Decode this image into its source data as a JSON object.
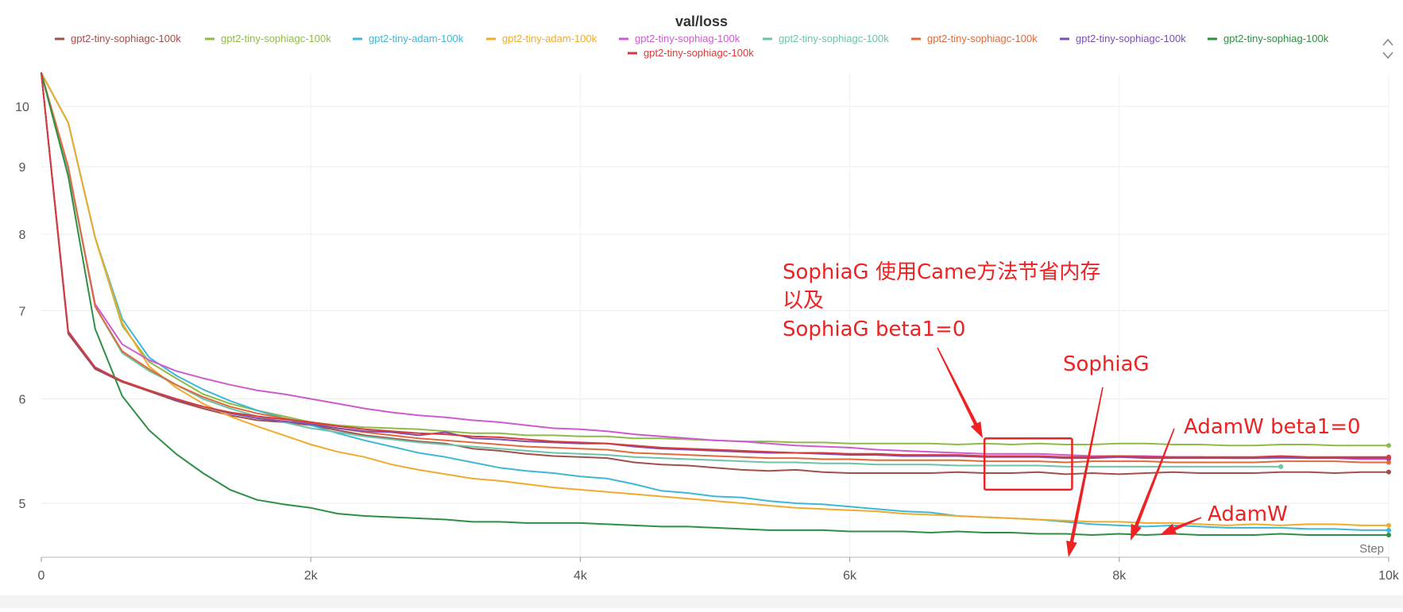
{
  "chart_data": {
    "type": "line",
    "title": "val/loss",
    "xlabel": "Step",
    "ylabel": "",
    "xlim": [
      0,
      10000
    ],
    "ylim": [
      4.55,
      10.6
    ],
    "y_scale": "log",
    "grid": true,
    "legend_position": "top",
    "x_ticks": [
      {
        "value": 0,
        "label": "0"
      },
      {
        "value": 2000,
        "label": "2k"
      },
      {
        "value": 4000,
        "label": "4k"
      },
      {
        "value": 6000,
        "label": "6k"
      },
      {
        "value": 8000,
        "label": "8k"
      },
      {
        "value": 10000,
        "label": "10k"
      }
    ],
    "y_ticks": [
      {
        "value": 5,
        "label": "5"
      },
      {
        "value": 6,
        "label": "6"
      },
      {
        "value": 7,
        "label": "7"
      },
      {
        "value": 8,
        "label": "8"
      },
      {
        "value": 9,
        "label": "9"
      },
      {
        "value": 10,
        "label": "10"
      }
    ],
    "series": [
      {
        "name": "gpt2-tiny-sophiagc-100k",
        "color": "#a0504a",
        "x": [
          0,
          200,
          400,
          600,
          800,
          1000,
          1200,
          1400,
          1600,
          1800,
          2000,
          2200,
          2400,
          2600,
          2800,
          3000,
          3200,
          3400,
          3600,
          3800,
          4000,
          4200,
          4400,
          4600,
          4800,
          5000,
          5200,
          5400,
          5600,
          5800,
          6000,
          6200,
          6400,
          6600,
          6800,
          7000,
          7200,
          7400,
          7600,
          7800,
          8000,
          8200,
          8400,
          8600,
          8800,
          9000,
          9200,
          9400,
          9600,
          9800,
          10000
        ],
        "y": [
          10.6,
          6.72,
          6.32,
          6.18,
          6.08,
          5.98,
          5.9,
          5.83,
          5.78,
          5.76,
          5.73,
          5.68,
          5.63,
          5.6,
          5.57,
          5.55,
          5.5,
          5.48,
          5.45,
          5.43,
          5.42,
          5.41,
          5.37,
          5.35,
          5.34,
          5.32,
          5.3,
          5.29,
          5.3,
          5.28,
          5.27,
          5.27,
          5.27,
          5.27,
          5.28,
          5.27,
          5.27,
          5.28,
          5.26,
          5.27,
          5.26,
          5.27,
          5.28,
          5.27,
          5.27,
          5.27,
          5.28,
          5.28,
          5.27,
          5.28,
          5.28
        ]
      },
      {
        "name": "gpt2-tiny-sophiagc-100k",
        "color": "#8fbc46",
        "x": [
          0,
          200,
          400,
          600,
          800,
          1000,
          1200,
          1400,
          1600,
          1800,
          2000,
          2200,
          2400,
          2600,
          2800,
          3000,
          3200,
          3400,
          3600,
          3800,
          4000,
          4200,
          4400,
          4600,
          4800,
          5000,
          5200,
          5400,
          5600,
          5800,
          6000,
          6200,
          6400,
          6600,
          6800,
          7000,
          7200,
          7400,
          7600,
          7800,
          8000,
          8200,
          8400,
          8600,
          8800,
          9000,
          9200,
          9400,
          9600,
          9800,
          10000
        ],
        "y": [
          10.6,
          9.72,
          7.95,
          6.82,
          6.4,
          6.22,
          6.05,
          5.95,
          5.88,
          5.82,
          5.76,
          5.73,
          5.71,
          5.7,
          5.69,
          5.67,
          5.65,
          5.65,
          5.63,
          5.63,
          5.62,
          5.62,
          5.6,
          5.6,
          5.59,
          5.58,
          5.57,
          5.57,
          5.56,
          5.56,
          5.55,
          5.55,
          5.55,
          5.55,
          5.54,
          5.55,
          5.54,
          5.55,
          5.54,
          5.54,
          5.55,
          5.55,
          5.54,
          5.54,
          5.53,
          5.53,
          5.54,
          5.54,
          5.53,
          5.53,
          5.53
        ]
      },
      {
        "name": "gpt2-tiny-adam-100k",
        "color": "#3fb7d6",
        "x": [
          0,
          200,
          400,
          600,
          800,
          1000,
          1200,
          1400,
          1600,
          1800,
          2000,
          2200,
          2400,
          2600,
          2800,
          3000,
          3200,
          3400,
          3600,
          3800,
          4000,
          4200,
          4400,
          4600,
          4800,
          5000,
          5200,
          5400,
          5600,
          5800,
          6000,
          6200,
          6400,
          6600,
          6800,
          7000,
          7200,
          7400,
          7600,
          7800,
          8000,
          8200,
          8400,
          8600,
          8800,
          9000,
          9200,
          9400,
          9600,
          9800,
          10000
        ],
        "y": [
          10.6,
          9.72,
          7.95,
          6.9,
          6.45,
          6.25,
          6.1,
          5.98,
          5.88,
          5.8,
          5.73,
          5.65,
          5.58,
          5.52,
          5.46,
          5.42,
          5.37,
          5.32,
          5.29,
          5.27,
          5.24,
          5.22,
          5.17,
          5.11,
          5.09,
          5.06,
          5.05,
          5.02,
          5.0,
          4.99,
          4.97,
          4.95,
          4.93,
          4.92,
          4.89,
          4.88,
          4.87,
          4.86,
          4.84,
          4.82,
          4.81,
          4.8,
          4.81,
          4.8,
          4.79,
          4.79,
          4.79,
          4.78,
          4.78,
          4.77,
          4.77
        ]
      },
      {
        "name": "gpt2-tiny-adam-100k",
        "color": "#efac2c",
        "x": [
          0,
          200,
          400,
          600,
          800,
          1000,
          1200,
          1400,
          1600,
          1800,
          2000,
          2200,
          2400,
          2600,
          2800,
          3000,
          3200,
          3400,
          3600,
          3800,
          4000,
          4200,
          4400,
          4600,
          4800,
          5000,
          5200,
          5400,
          5600,
          5800,
          6000,
          6200,
          6400,
          6600,
          6800,
          7000,
          7200,
          7400,
          7600,
          7800,
          8000,
          8200,
          8400,
          8600,
          8800,
          9000,
          9200,
          9400,
          9600,
          9800,
          10000
        ],
        "y": [
          10.6,
          9.72,
          7.95,
          6.85,
          6.35,
          6.12,
          5.95,
          5.82,
          5.72,
          5.63,
          5.54,
          5.47,
          5.42,
          5.35,
          5.3,
          5.26,
          5.22,
          5.2,
          5.17,
          5.14,
          5.12,
          5.1,
          5.08,
          5.06,
          5.04,
          5.02,
          5.0,
          4.98,
          4.96,
          4.95,
          4.94,
          4.93,
          4.91,
          4.9,
          4.89,
          4.88,
          4.87,
          4.86,
          4.85,
          4.84,
          4.84,
          4.83,
          4.83,
          4.82,
          4.81,
          4.82,
          4.81,
          4.82,
          4.82,
          4.81,
          4.81
        ]
      },
      {
        "name": "gpt2-tiny-sophiag-100k",
        "color": "#cc5bd0",
        "x": [
          0,
          200,
          400,
          600,
          800,
          1000,
          1200,
          1400,
          1600,
          1800,
          2000,
          2200,
          2400,
          2600,
          2800,
          3000,
          3200,
          3400,
          3600,
          3800,
          4000,
          4200,
          4400,
          4600,
          4800,
          5000,
          5200,
          5400,
          5600,
          5800,
          6000,
          6200,
          6400,
          6600,
          6800,
          7000,
          7200,
          7400,
          7600,
          7800,
          8000,
          8200,
          8400,
          8600,
          8800,
          9000,
          9200,
          9400,
          9600,
          9800,
          10000
        ],
        "y": [
          10.6,
          8.95,
          7.08,
          6.6,
          6.42,
          6.3,
          6.22,
          6.15,
          6.09,
          6.05,
          6.0,
          5.95,
          5.9,
          5.86,
          5.83,
          5.81,
          5.78,
          5.76,
          5.73,
          5.7,
          5.69,
          5.67,
          5.64,
          5.62,
          5.6,
          5.58,
          5.57,
          5.55,
          5.53,
          5.52,
          5.51,
          5.49,
          5.48,
          5.47,
          5.46,
          5.45,
          5.45,
          5.45,
          5.44,
          5.43,
          5.43,
          5.43,
          5.42,
          5.42,
          5.41,
          5.41,
          5.41,
          5.41,
          5.41,
          5.4,
          5.4
        ]
      },
      {
        "name": "gpt2-tiny-sophiagc-100k",
        "color": "#6cc4a8",
        "x": [
          0,
          200,
          400,
          600,
          800,
          1000,
          1200,
          1400,
          1600,
          1800,
          2000,
          2200,
          2400,
          2600,
          2800,
          3000,
          3200,
          3400,
          3600,
          3800,
          4000,
          4200,
          4400,
          4600,
          4800,
          5000,
          5200,
          5400,
          5600,
          5800,
          6000,
          6200,
          6400,
          6600,
          6800,
          7000,
          7200,
          7400,
          7600,
          7800,
          8000,
          8200,
          8400,
          8600,
          8800,
          9000,
          9200
        ],
        "y": [
          10.6,
          8.95,
          7.05,
          6.5,
          6.3,
          6.15,
          6.0,
          5.9,
          5.82,
          5.76,
          5.7,
          5.66,
          5.62,
          5.59,
          5.56,
          5.54,
          5.52,
          5.5,
          5.48,
          5.46,
          5.45,
          5.44,
          5.42,
          5.41,
          5.4,
          5.39,
          5.38,
          5.37,
          5.37,
          5.36,
          5.36,
          5.35,
          5.35,
          5.35,
          5.34,
          5.34,
          5.34,
          5.34,
          5.33,
          5.33,
          5.33,
          5.33,
          5.33,
          5.33,
          5.33,
          5.33,
          5.33
        ]
      },
      {
        "name": "gpt2-tiny-sophiagc-100k",
        "color": "#e06a3c",
        "x": [
          0,
          200,
          400,
          600,
          800,
          1000,
          1200,
          1400,
          1600,
          1800,
          2000,
          2200,
          2400,
          2600,
          2800,
          3000,
          3200,
          3400,
          3600,
          3800,
          4000,
          4200,
          4400,
          4600,
          4800,
          5000,
          5200,
          5400,
          5600,
          5800,
          6000,
          6200,
          6400,
          6600,
          6800,
          7000,
          7200,
          7400,
          7600,
          7800,
          8000,
          8200,
          8400,
          8600,
          8800,
          9000,
          9200,
          9400,
          9600,
          9800,
          10000
        ],
        "y": [
          10.6,
          9.0,
          7.05,
          6.52,
          6.32,
          6.15,
          6.02,
          5.92,
          5.85,
          5.8,
          5.75,
          5.7,
          5.66,
          5.63,
          5.6,
          5.58,
          5.56,
          5.54,
          5.52,
          5.51,
          5.5,
          5.49,
          5.46,
          5.45,
          5.44,
          5.43,
          5.42,
          5.41,
          5.41,
          5.4,
          5.4,
          5.39,
          5.39,
          5.39,
          5.39,
          5.38,
          5.38,
          5.38,
          5.37,
          5.38,
          5.38,
          5.38,
          5.37,
          5.37,
          5.37,
          5.37,
          5.38,
          5.38,
          5.38,
          5.37,
          5.37
        ]
      },
      {
        "name": "gpt2-tiny-sophiagc-100k",
        "color": "#7a4fb3",
        "x": [
          0,
          200,
          400,
          600,
          800,
          1000,
          1200,
          1400,
          1600,
          1800,
          2000,
          2200,
          2400,
          2600,
          2800,
          3000,
          3200,
          3400,
          3600,
          3800,
          4000,
          4200,
          4400,
          4600,
          4800,
          5000,
          5200,
          5400,
          5600,
          5800,
          6000,
          6200,
          6400,
          6600,
          6800,
          7000,
          7200,
          7400,
          7600,
          7800,
          8000,
          8200,
          8400,
          8600,
          8800,
          9000,
          9200,
          9400,
          9600,
          9800,
          10000
        ],
        "y": [
          10.6,
          6.74,
          6.33,
          6.19,
          6.09,
          5.99,
          5.92,
          5.85,
          5.8,
          5.77,
          5.74,
          5.7,
          5.67,
          5.66,
          5.63,
          5.66,
          5.6,
          5.59,
          5.57,
          5.56,
          5.55,
          5.55,
          5.52,
          5.5,
          5.49,
          5.48,
          5.47,
          5.46,
          5.46,
          5.45,
          5.44,
          5.44,
          5.43,
          5.43,
          5.43,
          5.42,
          5.42,
          5.42,
          5.41,
          5.41,
          5.42,
          5.41,
          5.41,
          5.41,
          5.41,
          5.41,
          5.42,
          5.41,
          5.41,
          5.41,
          5.41
        ]
      },
      {
        "name": "gpt2-tiny-sophiag-100k",
        "color": "#2e8f45",
        "x": [
          0,
          200,
          400,
          600,
          800,
          1000,
          1200,
          1400,
          1600,
          1800,
          2000,
          2200,
          2400,
          2600,
          2800,
          3000,
          3200,
          3400,
          3600,
          3800,
          4000,
          4200,
          4400,
          4600,
          4800,
          5000,
          5200,
          5400,
          5600,
          5800,
          6000,
          6200,
          6400,
          6600,
          6800,
          7000,
          7200,
          7400,
          7600,
          7800,
          8000,
          8200,
          8400,
          8600,
          8800,
          9000,
          9200,
          9400,
          9600,
          9800,
          10000
        ],
        "y": [
          10.6,
          8.85,
          6.78,
          6.03,
          5.68,
          5.45,
          5.27,
          5.12,
          5.03,
          4.99,
          4.96,
          4.91,
          4.89,
          4.88,
          4.87,
          4.86,
          4.84,
          4.84,
          4.83,
          4.83,
          4.83,
          4.82,
          4.81,
          4.8,
          4.8,
          4.79,
          4.78,
          4.77,
          4.77,
          4.77,
          4.76,
          4.76,
          4.76,
          4.75,
          4.76,
          4.75,
          4.75,
          4.74,
          4.74,
          4.73,
          4.74,
          4.73,
          4.74,
          4.73,
          4.73,
          4.73,
          4.74,
          4.73,
          4.73,
          4.73,
          4.73
        ]
      },
      {
        "name": "gpt2-tiny-sophiagc-100k",
        "color": "#d93a3a",
        "x": [
          0,
          200,
          400,
          600,
          800,
          1000,
          1200,
          1400,
          1600,
          1800,
          2000,
          2200,
          2400,
          2600,
          2800,
          3000,
          3200,
          3400,
          3600,
          3800,
          4000,
          4200,
          4400,
          4600,
          4800,
          5000,
          5200,
          5400,
          5600,
          5800,
          6000,
          6200,
          6400,
          6600,
          6800,
          7000,
          7200,
          7400,
          7600,
          7800,
          8000,
          8200,
          8400,
          8600,
          8800,
          9000,
          9200,
          9400,
          9600,
          9800,
          10000
        ],
        "y": [
          10.6,
          6.75,
          6.34,
          6.19,
          6.09,
          6.0,
          5.92,
          5.86,
          5.82,
          5.79,
          5.76,
          5.72,
          5.69,
          5.67,
          5.65,
          5.64,
          5.62,
          5.61,
          5.59,
          5.57,
          5.56,
          5.55,
          5.53,
          5.51,
          5.5,
          5.49,
          5.48,
          5.47,
          5.46,
          5.46,
          5.45,
          5.45,
          5.44,
          5.44,
          5.44,
          5.43,
          5.43,
          5.43,
          5.42,
          5.42,
          5.43,
          5.42,
          5.42,
          5.42,
          5.42,
          5.42,
          5.43,
          5.42,
          5.42,
          5.42,
          5.42
        ]
      }
    ],
    "annotations": [
      {
        "lines": [
          "SophiaG 使用Came方法节省内存",
          "以及",
          "SophiaG beta1=0"
        ],
        "color": "#ee2222"
      },
      {
        "lines": [
          "SophiaG"
        ],
        "color": "#ee2222"
      },
      {
        "lines": [
          "AdamW beta1=0"
        ],
        "color": "#ee2222"
      },
      {
        "lines": [
          "AdamW"
        ],
        "color": "#ee2222"
      }
    ],
    "highlight_box": {
      "x0": 7000,
      "x1": 7650,
      "y0": 5.12,
      "y1": 5.6,
      "color": "#ee2222"
    }
  }
}
